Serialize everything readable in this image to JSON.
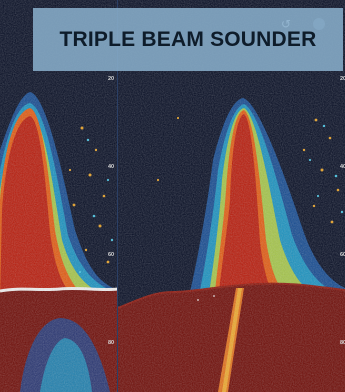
{
  "header": {
    "title": "TRIPLE BEAM SOUNDER"
  },
  "left_panel": {
    "depth_scale": [
      {
        "label": "20"
      },
      {
        "label": "40"
      },
      {
        "label": "60"
      },
      {
        "label": "80"
      }
    ]
  },
  "right_panel": {
    "depth_scale": [
      {
        "label": "20"
      },
      {
        "label": "40"
      },
      {
        "label": "60"
      },
      {
        "label": "80"
      }
    ]
  },
  "icons": {
    "back": "back-arrow-icon",
    "menu": "menu-icon"
  },
  "colors": {
    "background": "#040b22",
    "seabed": "#6e0a05",
    "echo_strong": "#b31a0a",
    "echo_mid": "#e86a10",
    "echo_weak": "#18a0d0",
    "banner": "#88adc9",
    "banner_text": "#0e1c2a"
  }
}
